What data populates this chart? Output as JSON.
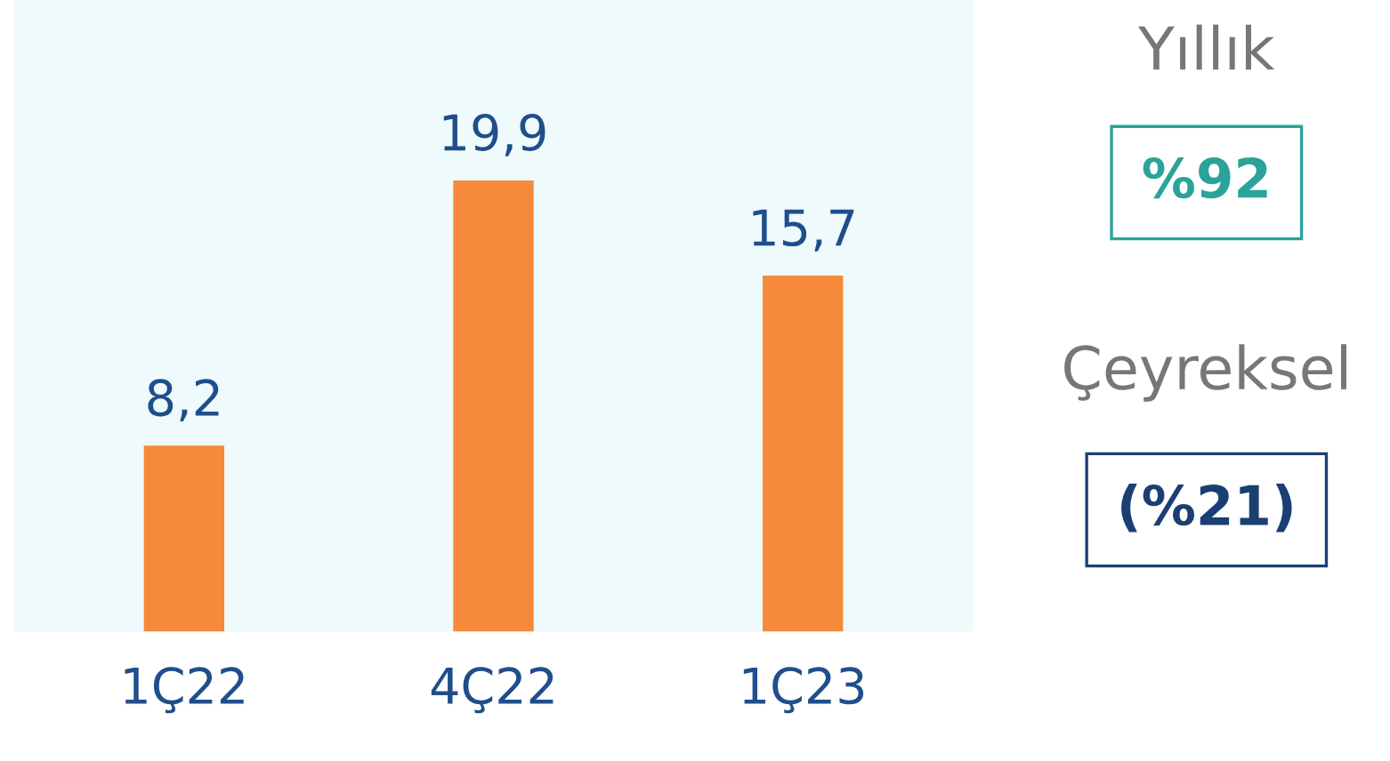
{
  "chart_data": {
    "type": "bar",
    "categories": [
      "1Ç22",
      "4Ç22",
      "1Ç23"
    ],
    "values": [
      8.2,
      19.9,
      15.7
    ],
    "value_labels": [
      "8,2",
      "19,9",
      "15,7"
    ],
    "color": "#f58a3c",
    "grid": false,
    "legend": false,
    "annotations": [
      "Yıllık",
      "%92",
      "Çeyreksel",
      "(%21)"
    ]
  }
}
